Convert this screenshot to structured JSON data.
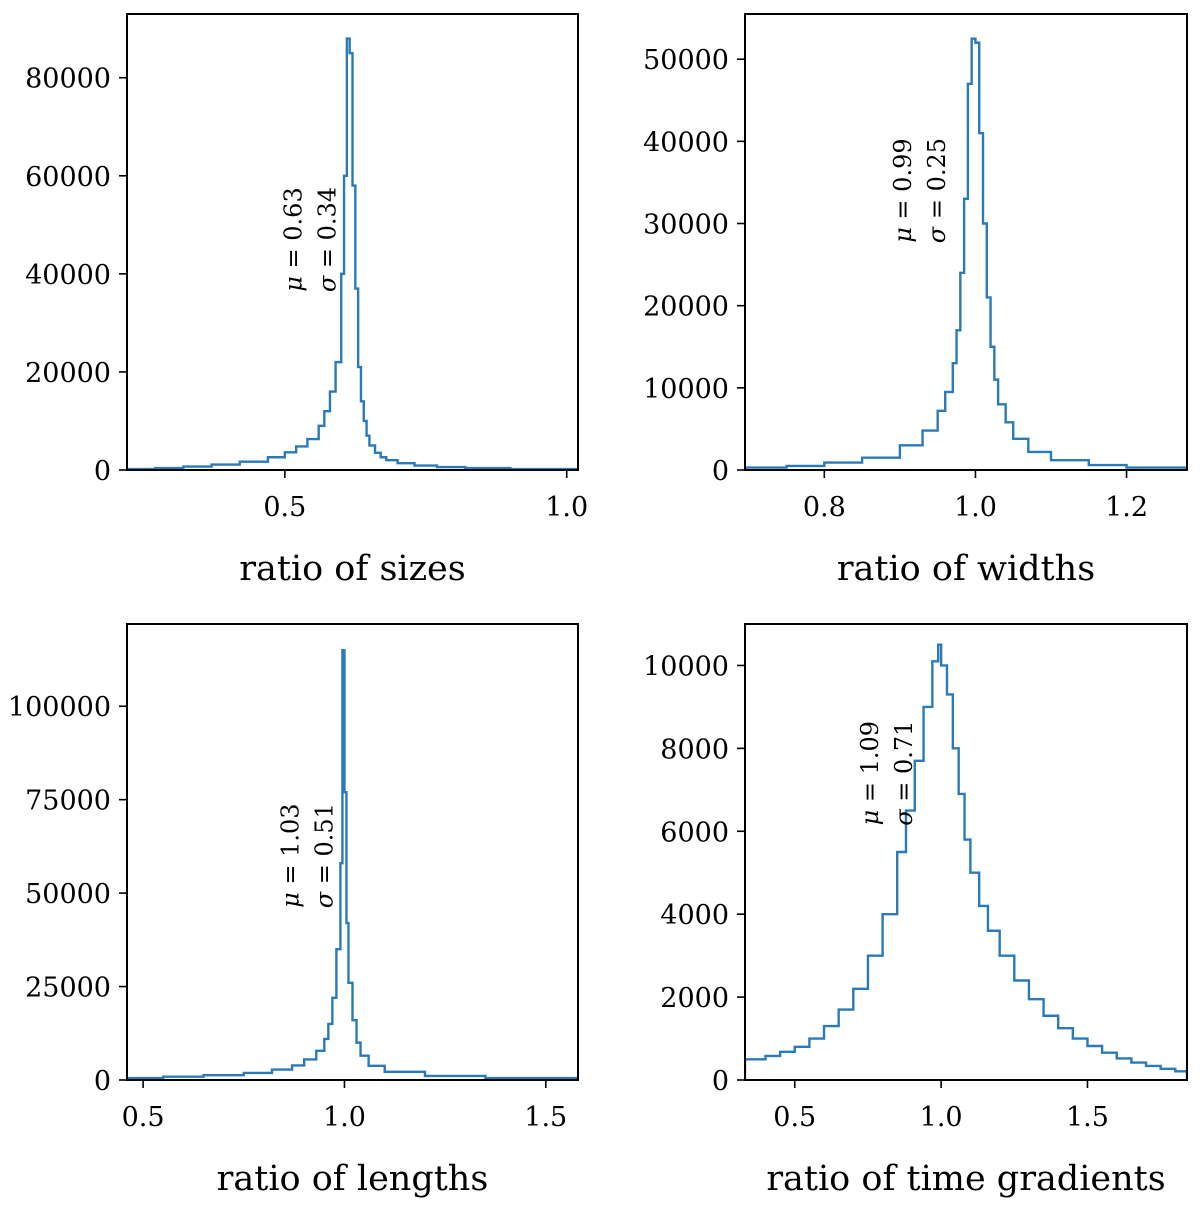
{
  "style": {
    "line_color": "#2a7ab9",
    "background": "#ffffff"
  },
  "chart_data": [
    {
      "type": "histogram",
      "xlabel": "ratio of sizes",
      "ylabel": "",
      "xlim": [
        0.22,
        1.02
      ],
      "ylim": [
        0,
        93000
      ],
      "xticks": [
        0.5,
        1.0
      ],
      "xtick_labels": [
        "0.5",
        "1.0"
      ],
      "yticks": [
        0,
        20000,
        40000,
        60000,
        80000
      ],
      "ytick_labels": [
        "0",
        "20000",
        "40000",
        "60000",
        "80000"
      ],
      "annotation": {
        "mu": "0.63",
        "sigma": "0.34",
        "x": 0.59,
        "y": 47000
      },
      "x": [
        0.22,
        0.27,
        0.32,
        0.37,
        0.42,
        0.47,
        0.5,
        0.52,
        0.54,
        0.56,
        0.57,
        0.58,
        0.59,
        0.6,
        0.605,
        0.61,
        0.615,
        0.62,
        0.625,
        0.63,
        0.635,
        0.64,
        0.645,
        0.65,
        0.66,
        0.67,
        0.68,
        0.7,
        0.73,
        0.77,
        0.82,
        0.9,
        1.02
      ],
      "counts": [
        200,
        400,
        700,
        1100,
        1700,
        2600,
        3600,
        4800,
        6300,
        9000,
        12000,
        16000,
        22000,
        40000,
        60000,
        88000,
        85000,
        58000,
        37000,
        21000,
        14000,
        10000,
        7000,
        5000,
        3500,
        2600,
        2000,
        1400,
        900,
        600,
        400,
        200,
        0
      ]
    },
    {
      "type": "histogram",
      "xlabel": "ratio of widths",
      "ylabel": "",
      "xlim": [
        0.695,
        1.28
      ],
      "ylim": [
        0,
        55500
      ],
      "xticks": [
        0.8,
        1.0,
        1.2
      ],
      "xtick_labels": [
        "0.8",
        "1.0",
        "1.2"
      ],
      "yticks": [
        0,
        10000,
        20000,
        30000,
        40000,
        50000
      ],
      "ytick_labels": [
        "0",
        "10000",
        "20000",
        "30000",
        "40000",
        "50000"
      ],
      "annotation": {
        "mu": "0.99",
        "sigma": "0.25",
        "x": 0.96,
        "y": 34000
      },
      "x": [
        0.695,
        0.75,
        0.8,
        0.85,
        0.9,
        0.93,
        0.95,
        0.96,
        0.97,
        0.975,
        0.98,
        0.985,
        0.99,
        0.995,
        1.0,
        1.005,
        1.01,
        1.015,
        1.02,
        1.025,
        1.03,
        1.04,
        1.05,
        1.07,
        1.1,
        1.15,
        1.2,
        1.28
      ],
      "counts": [
        300,
        500,
        900,
        1500,
        3000,
        4800,
        7200,
        9500,
        13000,
        17000,
        24000,
        33000,
        47000,
        52500,
        52000,
        41000,
        30000,
        21000,
        15000,
        11000,
        8000,
        5800,
        3800,
        2200,
        1200,
        600,
        300,
        0
      ]
    },
    {
      "type": "histogram",
      "xlabel": "ratio of lengths",
      "ylabel": "",
      "xlim": [
        0.46,
        1.58
      ],
      "ylim": [
        0,
        122000
      ],
      "xticks": [
        0.5,
        1.0,
        1.5
      ],
      "xtick_labels": [
        "0.5",
        "1.0",
        "1.5"
      ],
      "yticks": [
        0,
        25000,
        50000,
        75000,
        100000
      ],
      "ytick_labels": [
        "0",
        "25000",
        "50000",
        "75000",
        "100000"
      ],
      "annotation": {
        "mu": "1.03",
        "sigma": "0.51",
        "x": 0.97,
        "y": 60000
      },
      "x": [
        0.46,
        0.55,
        0.65,
        0.75,
        0.82,
        0.87,
        0.9,
        0.93,
        0.95,
        0.96,
        0.97,
        0.98,
        0.99,
        0.995,
        1.0,
        1.005,
        1.01,
        1.02,
        1.03,
        1.04,
        1.06,
        1.1,
        1.2,
        1.35,
        1.58
      ],
      "counts": [
        500,
        900,
        1300,
        1900,
        2800,
        3900,
        5500,
        7800,
        11000,
        15000,
        22000,
        35000,
        58000,
        115000,
        77000,
        42000,
        26000,
        16000,
        10000,
        6500,
        3800,
        2200,
        1100,
        500,
        0
      ]
    },
    {
      "type": "histogram",
      "xlabel": "ratio of time gradients",
      "ylabel": "",
      "xlim": [
        0.33,
        1.84
      ],
      "ylim": [
        0,
        11000
      ],
      "xticks": [
        0.5,
        1.0,
        1.5
      ],
      "xtick_labels": [
        "0.5",
        "1.0",
        "1.5"
      ],
      "yticks": [
        0,
        2000,
        4000,
        6000,
        8000,
        10000
      ],
      "ytick_labels": [
        "0",
        "2000",
        "4000",
        "6000",
        "8000",
        "10000"
      ],
      "annotation": {
        "mu": "1.09",
        "sigma": "0.71",
        "x": 0.9,
        "y": 7400
      },
      "x": [
        0.33,
        0.4,
        0.45,
        0.5,
        0.55,
        0.6,
        0.65,
        0.7,
        0.75,
        0.8,
        0.85,
        0.88,
        0.91,
        0.94,
        0.97,
        0.99,
        1.0,
        1.02,
        1.04,
        1.06,
        1.08,
        1.1,
        1.13,
        1.16,
        1.2,
        1.25,
        1.3,
        1.35,
        1.4,
        1.45,
        1.5,
        1.55,
        1.6,
        1.65,
        1.7,
        1.75,
        1.8,
        1.84
      ],
      "counts": [
        500,
        580,
        680,
        800,
        1000,
        1300,
        1700,
        2200,
        3000,
        4000,
        5500,
        6500,
        7700,
        9000,
        10100,
        10500,
        10000,
        9300,
        8000,
        6900,
        5800,
        5000,
        4200,
        3600,
        3000,
        2400,
        1950,
        1550,
        1250,
        1000,
        820,
        660,
        520,
        420,
        340,
        270,
        210,
        0
      ]
    }
  ]
}
